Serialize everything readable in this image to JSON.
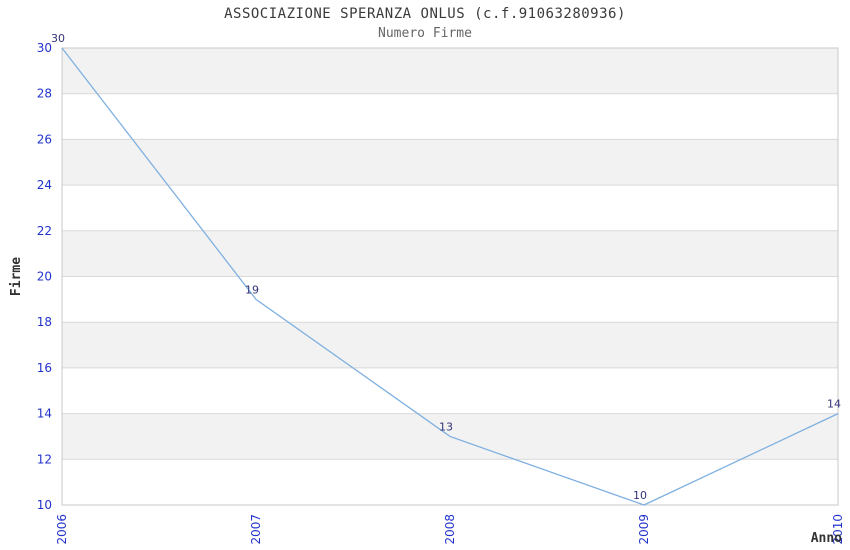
{
  "chart_data": {
    "type": "line",
    "title": "ASSOCIAZIONE SPERANZA ONLUS (c.f.91063280936)",
    "subtitle": "Numero Firme",
    "xlabel": "Anno",
    "ylabel": "Firme",
    "categories": [
      "2006",
      "2007",
      "2008",
      "2009",
      "2010"
    ],
    "series": [
      {
        "name": "Numero Firme",
        "values": [
          30,
          19,
          13,
          10,
          14
        ]
      }
    ],
    "point_labels": [
      "30",
      "19",
      "13",
      "10",
      "14"
    ],
    "ylim": [
      10,
      30
    ],
    "ytick_step": 2,
    "grid": true,
    "legend": "none",
    "band_pattern": "alternating horizontal stripes starting gray at top",
    "colors": {
      "line": "#7fb0e0",
      "band": "#f2f2f2",
      "gridline": "#d9d9d9",
      "plot_border": "#c9c9c9",
      "tick_label": "#2233cc",
      "point_label": "#333377",
      "title_text": "#3a3a3a",
      "subtitle_text": "#666666",
      "axis_title": "#333333",
      "background": "#ffffff"
    }
  }
}
